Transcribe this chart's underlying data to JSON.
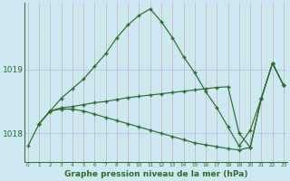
{
  "bg_color": "#cde8f0",
  "grid_color": "#a8cdd6",
  "line_color": "#2d6a2d",
  "xlim": [
    -0.3,
    23.3
  ],
  "ylim": [
    1017.55,
    1020.05
  ],
  "yticks": [
    1018,
    1019
  ],
  "xticks": [
    0,
    1,
    2,
    3,
    4,
    5,
    6,
    7,
    8,
    9,
    10,
    11,
    12,
    13,
    14,
    15,
    16,
    17,
    18,
    19,
    20,
    21,
    22,
    23
  ],
  "xlabel": "Graphe pression niveau de la mer (hPa)",
  "line1_x": [
    0,
    1,
    2,
    3,
    4,
    5,
    6,
    7,
    8,
    9,
    10,
    11,
    12,
    13,
    14,
    15,
    16,
    17,
    18,
    19,
    20,
    21,
    22,
    23
  ],
  "line1_y": [
    1017.8,
    1018.15,
    1018.35,
    1018.55,
    1018.7,
    1018.85,
    1019.05,
    1019.25,
    1019.5,
    1019.7,
    1019.85,
    1019.95,
    1019.75,
    1019.5,
    1019.2,
    1018.95,
    1018.65,
    1018.4,
    1018.1,
    1017.8,
    1018.05,
    1018.55,
    1019.1,
    1018.75
  ],
  "line2_x": [
    1,
    2,
    3,
    4,
    5,
    6,
    7,
    8,
    9,
    10,
    11,
    12,
    13,
    14,
    15,
    16,
    17,
    18,
    19,
    20,
    21,
    22,
    23
  ],
  "line2_y": [
    1018.15,
    1018.35,
    1018.4,
    1018.42,
    1018.45,
    1018.48,
    1018.5,
    1018.53,
    1018.56,
    1018.58,
    1018.6,
    1018.62,
    1018.64,
    1018.66,
    1018.68,
    1018.7,
    1018.72,
    1018.73,
    1018.0,
    1017.78,
    1018.55,
    1019.1,
    1018.75
  ],
  "line3_x": [
    1,
    2,
    3,
    4,
    5,
    6,
    7,
    8,
    9,
    10,
    11,
    12,
    13,
    14,
    15,
    16,
    17,
    18,
    19,
    20,
    21,
    22,
    23
  ],
  "line3_y": [
    1018.15,
    1018.35,
    1018.38,
    1018.38,
    1018.35,
    1018.3,
    1018.25,
    1018.2,
    1018.15,
    1018.1,
    1018.05,
    1018.0,
    1017.95,
    1017.9,
    1017.85,
    1017.82,
    1017.79,
    1017.76,
    1017.74,
    1017.78,
    1018.55,
    1019.1,
    1018.75
  ]
}
